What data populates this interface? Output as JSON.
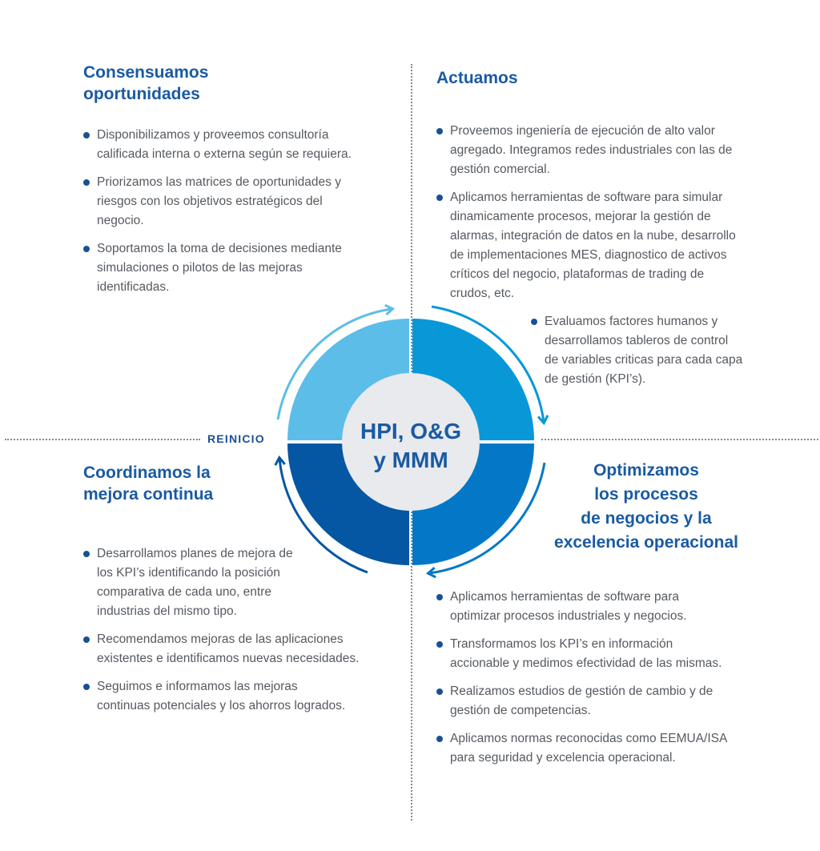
{
  "center": {
    "line1": "HPI, O&G",
    "line2": "y MMM"
  },
  "reinicio": "REINICIO",
  "colors": {
    "q_tl": "#5dbde9",
    "q_tr": "#0898d8",
    "q_br": "#0478c6",
    "q_bl": "#0556a3",
    "center": "#e8eaee",
    "heading": "#1a5aa3",
    "bullet": "#1a4f96",
    "text": "#555a60"
  },
  "quadrants": {
    "top_left": {
      "title_lines": [
        "Consensuamos",
        "oportunidades"
      ],
      "items": [
        "Disponibilizamos y proveemos consultoría calificada interna o externa según se requiera.",
        "Priorizamos las matrices de oportunidades y riesgos con los objetivos estratégicos del negocio.",
        "Soportamos la toma de decisiones mediante simulaciones o pilotos de las mejoras identificadas."
      ]
    },
    "top_right": {
      "title_lines": [
        "Actuamos"
      ],
      "items": [
        "Proveemos ingeniería de ejecución de alto valor agregado. Integramos redes industriales con las de gestión comercial.",
        "Aplicamos herramientas de software para simular dinamicamente procesos, mejorar la gestión de alarmas, integración de datos en la nube, desarrollo de implementaciones MES, diagnostico de activos críticos del negocio, plataformas de trading de crudos, etc.",
        "Evaluamos factores humanos y desarrollamos tableros de control de variables criticas para cada capa de gestión (KPI’s)."
      ]
    },
    "bottom_left": {
      "title_lines": [
        "Coordinamos la",
        "mejora continua"
      ],
      "items": [
        "Desarrollamos planes de mejora de los KPI’s identificando la posición comparativa de cada uno, entre industrias del mismo tipo.",
        "Recomendamos mejoras de las aplicaciones existentes e identificamos nuevas necesidades.",
        "Seguimos e informamos las mejoras continuas potenciales y los ahorros logrados."
      ]
    },
    "bottom_right": {
      "title_lines": [
        "Optimizamos",
        "los procesos",
        "de negocios y la",
        "excelencia operacional"
      ],
      "items": [
        "Aplicamos herramientas de software para optimizar procesos industriales y negocios.",
        "Transformamos los KPI’s en información accionable y medimos efectividad de las mismas.",
        "Realizamos estudios de gestión de cambio y de gestión de competencias.",
        "Aplicamos normas reconocidas como EEMUA/ISA para seguridad y excelencia operacional."
      ]
    }
  }
}
